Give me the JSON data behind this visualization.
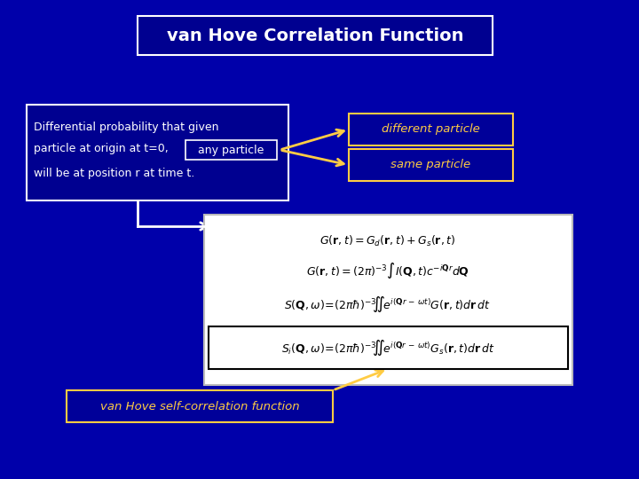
{
  "bg_color": "#0000AA",
  "title_text": "van Hove Correlation Function",
  "title_text_color": "#ffffff",
  "title_border_color": "#ffffff",
  "title_box_color": "#000090",
  "desc_text_color": "#ffffff",
  "desc_border_color": "#ffffff",
  "desc_box_color": "#000090",
  "label_diff": "different particle",
  "label_same": "same particle",
  "label_self": "van Hove self-correlation function",
  "label_color": "#ffcc44",
  "label_border": "#ffcc44",
  "label_bg": "#000099",
  "eq_box_color": "#ffffff",
  "eq_text_color": "#000000",
  "eq4_border_color": "#000000"
}
